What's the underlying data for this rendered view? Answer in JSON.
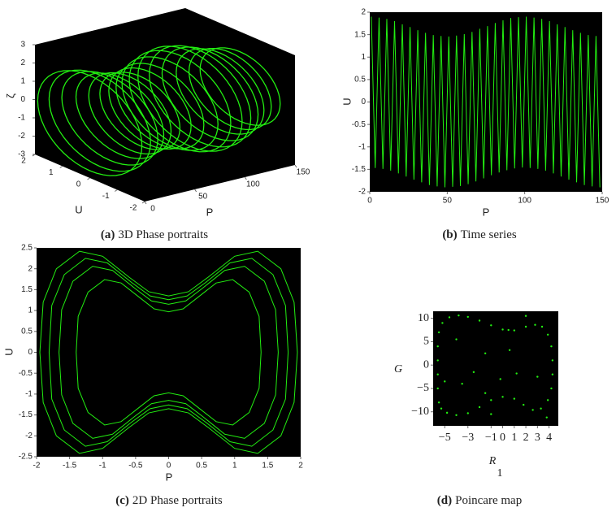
{
  "chart_data": [
    {
      "type": "loops3d",
      "color": "#22ee11",
      "caption_label": "(a)",
      "caption": "3D Phase portraits",
      "xlabel": "P",
      "ylabel": "U",
      "zlabel": "ζ",
      "xlim": [
        0,
        150
      ],
      "xticks": [
        0,
        50,
        100,
        150
      ],
      "ylim": [
        -2,
        2
      ],
      "yticks": [
        -2,
        -1,
        0,
        1,
        2
      ],
      "zlim": [
        -3,
        3
      ],
      "zticks": [
        -3,
        -2,
        -1,
        0,
        1,
        2,
        3
      ],
      "loops": {
        "P": [
          0,
          10,
          20,
          30,
          40,
          50,
          60,
          70,
          80,
          90,
          100,
          110,
          120,
          130,
          140,
          150
        ],
        "U_amp": [
          1.9,
          1.85,
          1.75,
          1.6,
          1.5,
          1.46,
          1.5,
          1.6,
          1.75,
          1.85,
          1.9,
          1.85,
          1.75,
          1.6,
          1.5,
          1.46
        ],
        "zeta_amp": [
          2.6,
          2.5,
          2.3,
          2.1,
          2.0,
          1.9,
          2.0,
          2.1,
          2.3,
          2.5,
          2.6,
          2.5,
          2.3,
          2.1,
          2.0,
          1.9
        ]
      }
    },
    {
      "type": "line",
      "caption_label": "(b)",
      "caption": "Time series",
      "xlabel": "P",
      "ylabel": "U",
      "xlim": [
        0,
        150
      ],
      "xticks": [
        0,
        50,
        100,
        150
      ],
      "ylim": [
        -2,
        2
      ],
      "yticks": [
        -2,
        -1.5,
        -1,
        -0.5,
        0,
        0.5,
        1,
        1.5,
        2
      ],
      "x": [
        1,
        3.5,
        6,
        8.5,
        11,
        13.5,
        16,
        18.5,
        21,
        23.5,
        26,
        28.5,
        31,
        33.5,
        36,
        38.5,
        41,
        43.5,
        46,
        48.5,
        51,
        53.5,
        56,
        58.5,
        61,
        63.5,
        66,
        68.5,
        71,
        73.5,
        76,
        78.5,
        81,
        83.5,
        86,
        88.5,
        91,
        93.5,
        96,
        98.5,
        101,
        103.5,
        106,
        108.5,
        111,
        113.5,
        116,
        118.5,
        121,
        123.5,
        126,
        128.5,
        131,
        133.5,
        136,
        138.5,
        141,
        143.5,
        146,
        148.5
      ],
      "series": [
        {
          "color": "#22ee11",
          "values": [
            1.9,
            -1.47,
            1.88,
            -1.49,
            1.85,
            -1.53,
            1.8,
            -1.59,
            1.73,
            -1.66,
            1.67,
            -1.73,
            1.6,
            -1.79,
            1.54,
            -1.85,
            1.49,
            -1.88,
            1.47,
            -1.9,
            1.46,
            -1.89,
            1.48,
            -1.87,
            1.51,
            -1.83,
            1.56,
            -1.77,
            1.63,
            -1.7,
            1.69,
            -1.63,
            1.76,
            -1.57,
            1.82,
            -1.52,
            1.87,
            -1.48,
            1.89,
            -1.46,
            1.9,
            -1.47,
            1.88,
            -1.49,
            1.85,
            -1.53,
            1.8,
            -1.59,
            1.73,
            -1.66,
            1.67,
            -1.73,
            1.6,
            -1.79,
            1.54,
            -1.85,
            1.49,
            -1.88,
            1.47,
            -1.9
          ]
        }
      ]
    },
    {
      "type": "line",
      "caption_label": "(c)",
      "caption": "2D Phase portraits",
      "xlabel": "P",
      "ylabel": "U",
      "xlim": [
        -2,
        2
      ],
      "xticks": [
        -2,
        -1.5,
        -1,
        -0.5,
        0,
        0.5,
        1,
        1.5,
        2
      ],
      "ylim": [
        -2.5,
        2.5
      ],
      "yticks": [
        -2.5,
        -2,
        -1.5,
        -1,
        -0.5,
        0,
        0.5,
        1,
        1.5,
        2,
        2.5
      ],
      "series": [
        {
          "color": "#22ee11",
          "x": [
            1.95,
            1.9,
            1.7,
            1.35,
            1.0,
            0.6,
            0.3,
            0,
            -0.3,
            -0.6,
            -1.0,
            -1.35,
            -1.7,
            -1.9,
            -1.95,
            -1.9,
            -1.7,
            -1.35,
            -1.0,
            -0.6,
            -0.3,
            0,
            0.3,
            0.6,
            1.0,
            1.35,
            1.7,
            1.9,
            1.95
          ],
          "values": [
            0,
            1.2,
            2.0,
            2.42,
            2.3,
            1.8,
            1.45,
            1.35,
            1.45,
            1.8,
            2.3,
            2.42,
            2.0,
            1.2,
            0,
            -1.2,
            -2.0,
            -2.42,
            -2.3,
            -1.8,
            -1.45,
            -1.35,
            -1.45,
            -1.8,
            -2.3,
            -2.42,
            -2.0,
            -1.2,
            0
          ]
        },
        {
          "color": "#22ee11",
          "x": [
            1.81,
            1.77,
            1.58,
            1.26,
            0.93,
            0.56,
            0.28,
            0,
            -0.28,
            -0.56,
            -0.93,
            -1.26,
            -1.58,
            -1.77,
            -1.81,
            -1.77,
            -1.58,
            -1.26,
            -0.93,
            -0.56,
            -0.28,
            0,
            0.28,
            0.56,
            0.93,
            1.26,
            1.58,
            1.77,
            1.81
          ],
          "values": [
            0,
            1.12,
            1.86,
            2.25,
            2.14,
            1.67,
            1.35,
            1.26,
            1.35,
            1.67,
            2.14,
            2.25,
            1.86,
            1.12,
            0,
            -1.12,
            -1.86,
            -2.25,
            -2.14,
            -1.67,
            -1.35,
            -1.26,
            -1.35,
            -1.67,
            -2.14,
            -2.25,
            -1.86,
            -1.12,
            0
          ]
        },
        {
          "color": "#22ee11",
          "x": [
            1.66,
            1.62,
            1.45,
            1.15,
            0.85,
            0.51,
            0.26,
            0,
            -0.26,
            -0.51,
            -0.85,
            -1.15,
            -1.45,
            -1.62,
            -1.66,
            -1.62,
            -1.45,
            -1.15,
            -0.85,
            -0.51,
            -0.26,
            0,
            0.26,
            0.51,
            0.85,
            1.15,
            1.45,
            1.62,
            1.66
          ],
          "values": [
            0,
            1.02,
            1.7,
            2.06,
            1.96,
            1.53,
            1.23,
            1.15,
            1.23,
            1.53,
            1.96,
            2.06,
            1.7,
            1.02,
            0,
            -1.02,
            -1.7,
            -2.06,
            -1.96,
            -1.53,
            -1.23,
            -1.15,
            -1.23,
            -1.53,
            -1.96,
            -2.06,
            -1.7,
            -1.02,
            0
          ]
        },
        {
          "color": "#22ee11",
          "x": [
            1.4,
            1.37,
            1.22,
            0.97,
            0.72,
            0.43,
            0.22,
            0,
            -0.22,
            -0.43,
            -0.72,
            -0.97,
            -1.22,
            -1.37,
            -1.4,
            -1.37,
            -1.22,
            -0.97,
            -0.72,
            -0.43,
            -0.22,
            0,
            0.22,
            0.43,
            0.72,
            0.97,
            1.22,
            1.37,
            1.4
          ],
          "values": [
            0,
            0.86,
            1.44,
            1.74,
            1.66,
            1.3,
            1.04,
            0.97,
            1.04,
            1.3,
            1.66,
            1.74,
            1.44,
            0.86,
            0,
            -0.86,
            -1.44,
            -1.74,
            -1.66,
            -1.3,
            -1.04,
            -0.97,
            -1.04,
            -1.3,
            -1.66,
            -1.74,
            -1.44,
            -0.86,
            0
          ]
        }
      ]
    },
    {
      "type": "scatter",
      "caption_label": "(d)",
      "caption": "Poincare map",
      "xlabel": "R",
      "xlabel_sub": "1",
      "ylabel": "G",
      "xlim": [
        -6,
        4.8
      ],
      "xticks": [
        {
          "value": -5,
          "label": "−5"
        },
        {
          "value": -3,
          "label": "−3"
        },
        {
          "value": -1,
          "label": "−1"
        },
        0,
        1,
        2,
        3,
        4
      ],
      "ylim": [
        -13,
        11.5
      ],
      "yticks": [
        {
          "value": -10,
          "label": "−10"
        },
        {
          "value": -5,
          "label": "−5"
        },
        0,
        5,
        10
      ],
      "series": [
        {
          "color": "#22ee11",
          "x": [
            -5.5,
            -5.6,
            -5.6,
            -5.6,
            -5.6,
            -5.5,
            -5.2,
            -4.6,
            -3.8,
            -3,
            -2,
            -1,
            0,
            1,
            2,
            2.8,
            3.4,
            3.9,
            4.2,
            4.3,
            4.3,
            4.2,
            3.9,
            3.3,
            2.6,
            1.8,
            1,
            0,
            -1,
            -2,
            -3,
            -4,
            -4.8,
            -5.3,
            -4,
            -1.5,
            0.5,
            -2.5,
            -0.2,
            1.2,
            -5,
            3,
            -3.5,
            2,
            -1,
            3.8,
            -1.5,
            0.6
          ],
          "values": [
            -8,
            -5,
            -2,
            1,
            4,
            7,
            9,
            10.2,
            10.6,
            10.3,
            9.5,
            8.5,
            7.6,
            7.4,
            8.2,
            8.6,
            8.2,
            6.5,
            4,
            1,
            -2,
            -5,
            -7.5,
            -9.3,
            -9.6,
            -8.5,
            -7.2,
            -6.8,
            -7.5,
            -9,
            -10.3,
            -10.7,
            -10.2,
            -9.3,
            5.5,
            2.5,
            7.5,
            -1.5,
            -3,
            -1.8,
            -3.5,
            -2.5,
            -4,
            10.5,
            -10.5,
            -11.2,
            -6,
            3.2
          ]
        }
      ]
    }
  ]
}
